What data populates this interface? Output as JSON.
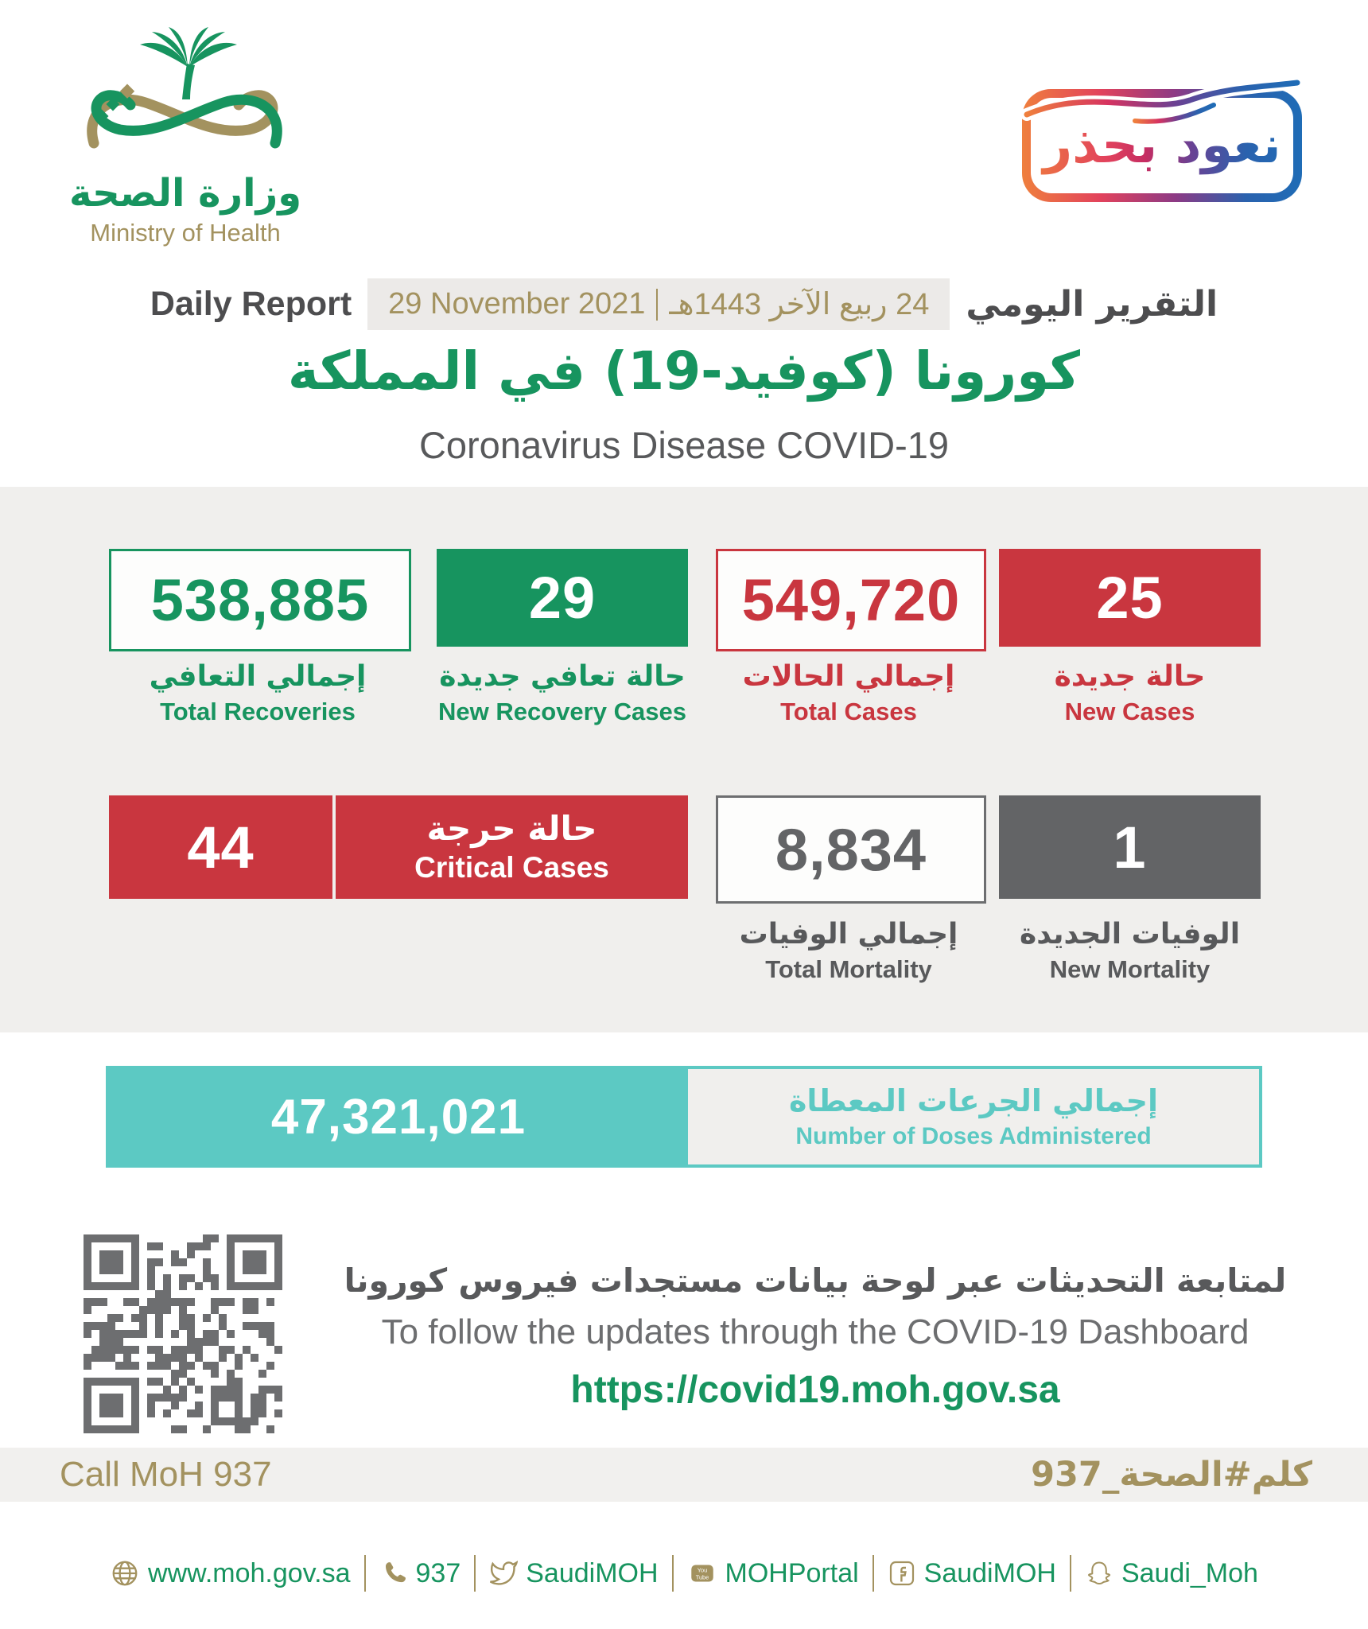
{
  "logo": {
    "title_ar": "وزارة الصحة",
    "title_en": "Ministry of Health"
  },
  "badge": {
    "text": "نعود بحذر"
  },
  "report": {
    "label_en": "Daily Report",
    "date_gregorian": "29 November 2021",
    "date_hijri": "24 ربيع الآخر 1443هـ",
    "label_ar": "التقرير اليومي"
  },
  "title": {
    "ar": "كورونا (كوفيد-19) في المملكة",
    "en": "Coronavirus Disease COVID-19"
  },
  "stats": [
    {
      "id": "total-recoveries",
      "value": "538,885",
      "label_ar": "إجمالي التعافي",
      "label_en": "Total Recoveries"
    },
    {
      "id": "new-recovery-cases",
      "value": "29",
      "label_ar": "حالة تعافي جديدة",
      "label_en": "New Recovery Cases"
    },
    {
      "id": "total-cases",
      "value": "549,720",
      "label_ar": "إجمالي الحالات",
      "label_en": "Total Cases"
    },
    {
      "id": "new-cases",
      "value": "25",
      "label_ar": "حالة جديدة",
      "label_en": "New Cases"
    },
    {
      "id": "critical-cases",
      "value": "44",
      "label_ar": "حالة حرجة",
      "label_en": "Critical Cases"
    },
    {
      "id": "total-mortality",
      "value": "8,834",
      "label_ar": "إجمالي الوفيات",
      "label_en": "Total Mortality"
    },
    {
      "id": "new-mortality",
      "value": "1",
      "label_ar": "الوفيات الجديدة",
      "label_en": "New Mortality"
    }
  ],
  "doses": {
    "value": "47,321,021",
    "label_ar": "إجمالي الجرعات المعطاة",
    "label_en": "Number of Doses Administered"
  },
  "dashboard": {
    "note_ar": "لمتابعة التحديثات عبر لوحة بيانات مستجدات فيروس كورونا",
    "note_en": "To follow the updates through the COVID-19 Dashboard",
    "url": "https://covid19.moh.gov.sa"
  },
  "hotline": {
    "en": "Call MoH 937",
    "ar": "كلم#الصحة_937"
  },
  "footer": {
    "items": [
      {
        "icon": "globe-icon",
        "label": "www.moh.gov.sa"
      },
      {
        "icon": "phone-icon",
        "label": "937"
      },
      {
        "icon": "twitter-icon",
        "label": "SaudiMOH"
      },
      {
        "icon": "youtube-icon",
        "label": "MOHPortal"
      },
      {
        "icon": "facebook-icon",
        "label": "SaudiMOH"
      },
      {
        "icon": "snapchat-icon",
        "label": "Saudi_Moh"
      }
    ]
  },
  "colors": {
    "green": "#17945f",
    "gold": "#a3925f",
    "red": "#c9363f",
    "dark_gray": "#636466",
    "teal": "#5cc9c3",
    "band_bg": "#f0efed"
  }
}
